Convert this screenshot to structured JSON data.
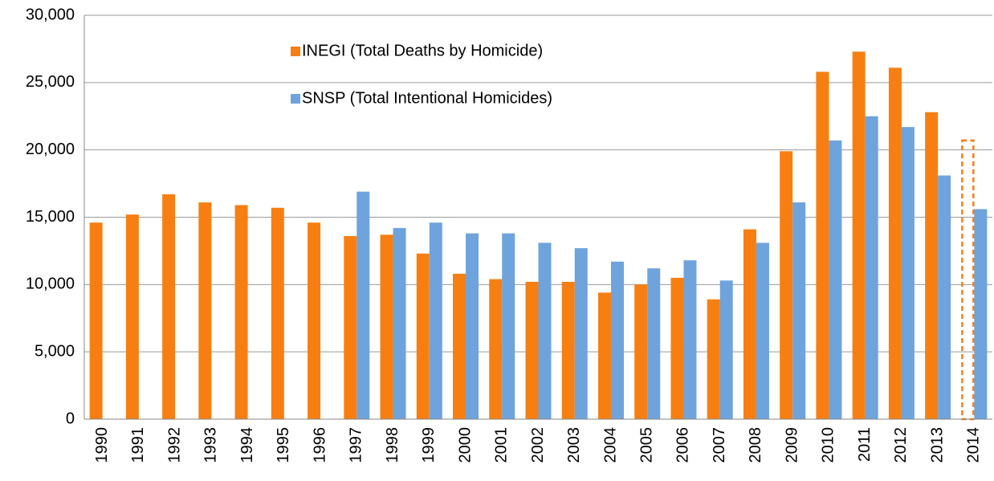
{
  "chart_data": {
    "type": "bar",
    "categories": [
      "1990",
      "1991",
      "1992",
      "1993",
      "1994",
      "1995",
      "1996",
      "1997",
      "1998",
      "1999",
      "2000",
      "2001",
      "2002",
      "2003",
      "2004",
      "2005",
      "2006",
      "2007",
      "2008",
      "2009",
      "2010",
      "2011",
      "2012",
      "2013",
      "2014"
    ],
    "series": [
      {
        "name": "INEGI (Total Deaths by Homicide)",
        "color": "#f77f12",
        "values": [
          14600,
          15200,
          16700,
          16100,
          15900,
          15700,
          14600,
          13600,
          13700,
          12300,
          10800,
          10400,
          10200,
          10200,
          9400,
          10000,
          10500,
          8900,
          14100,
          19900,
          25800,
          27300,
          26100,
          22800,
          20700
        ],
        "dashed": [
          24
        ]
      },
      {
        "name": "SNSP (Total Intentional Homicides)",
        "color": "#6fa3dc",
        "values": [
          null,
          null,
          null,
          null,
          null,
          null,
          null,
          16900,
          14200,
          14600,
          13800,
          13800,
          13100,
          12700,
          11700,
          11200,
          11800,
          10300,
          13100,
          16100,
          20700,
          22500,
          21700,
          18100,
          15600
        ]
      }
    ],
    "ylim": [
      0,
      30000
    ],
    "yticks": [
      0,
      {
        "value": 5000,
        "label": "5,000"
      },
      {
        "value": 10000,
        "label": "10,000"
      },
      {
        "value": 15000,
        "label": "15,000"
      },
      {
        "value": 20000,
        "label": "20,000"
      },
      {
        "value": 25000,
        "label": "25,000"
      },
      {
        "value": 30000,
        "label": "30,000"
      }
    ],
    "grid": true,
    "legend": "top"
  }
}
